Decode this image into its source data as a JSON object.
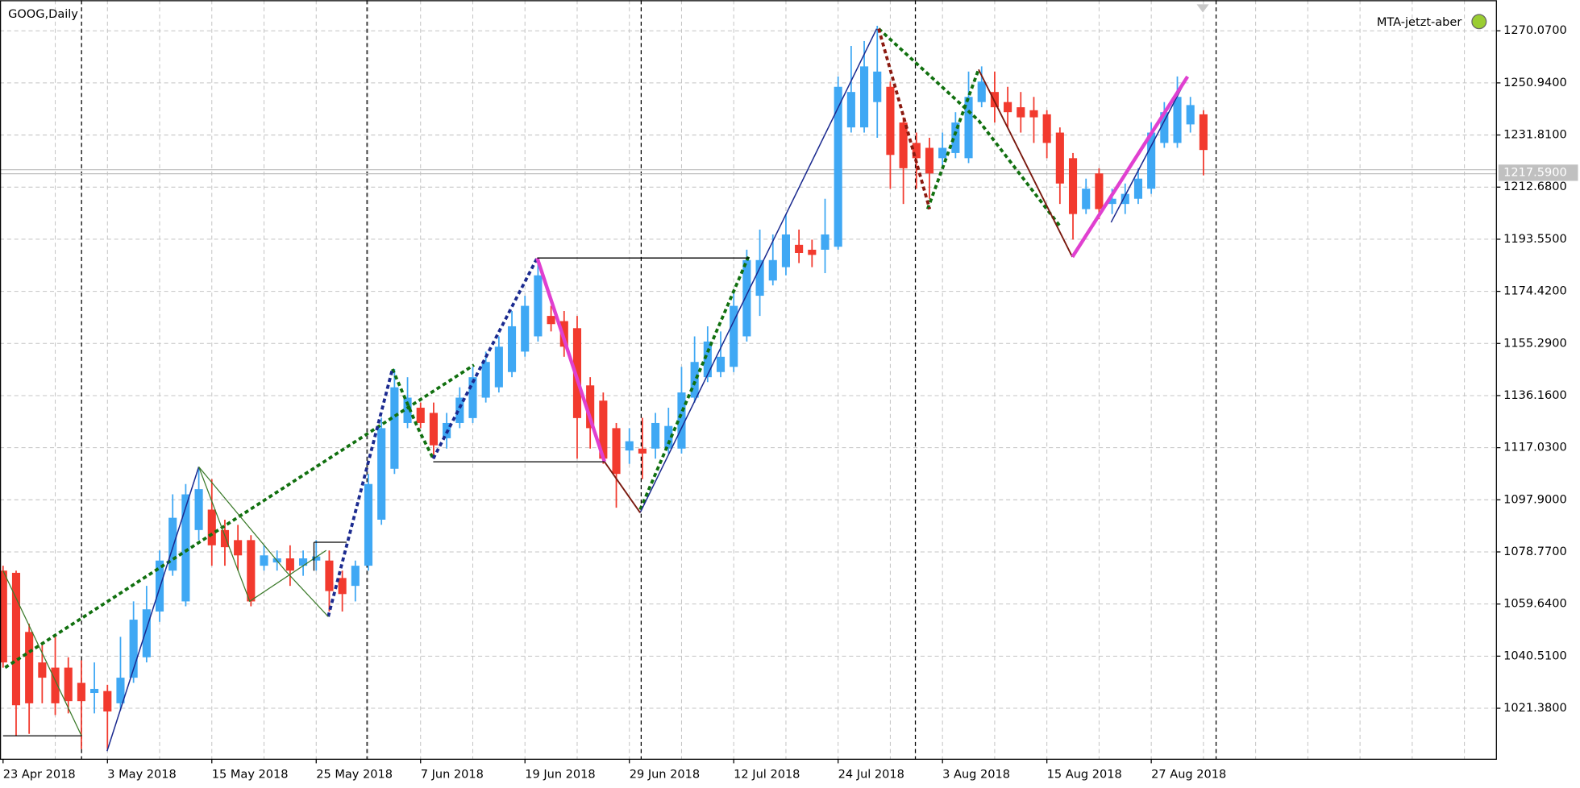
{
  "chart_data": {
    "type": "candlestick",
    "title": "GOOG,Daily",
    "indicator": "MTA-jetzt-aber",
    "up_color": "#3fa8f4",
    "down_color": "#f23a2e",
    "grid": true,
    "current_price": {
      "value": 1217.59,
      "label": "1217.5900"
    },
    "categories": [
      "23 Apr 2018",
      null,
      null,
      null,
      null,
      null,
      null,
      null,
      "3 May 2018",
      null,
      null,
      null,
      null,
      null,
      null,
      null,
      "15 May 2018",
      null,
      null,
      null,
      null,
      null,
      null,
      null,
      "25 May 2018",
      null,
      null,
      null,
      null,
      null,
      null,
      null,
      "7 Jun 2018",
      null,
      null,
      null,
      null,
      null,
      null,
      null,
      "19 Jun 2018",
      null,
      null,
      null,
      null,
      null,
      null,
      null,
      "29 Jun 2018",
      null,
      null,
      null,
      null,
      null,
      null,
      null,
      "12 Jul 2018",
      null,
      null,
      null,
      null,
      null,
      null,
      null,
      "24 Jul 2018",
      null,
      null,
      null,
      null,
      null,
      null,
      null,
      "3 Aug 2018",
      null,
      null,
      null,
      null,
      null,
      null,
      null,
      "15 Aug 2018",
      null,
      null,
      null,
      null,
      null,
      null,
      null,
      "27 Aug 2018",
      null,
      null,
      null,
      null
    ],
    "open": [
      1071.9,
      1071.1,
      1049.4,
      1038.2,
      1036.3,
      1036.3,
      1030.7,
      1027.0,
      1027.7,
      1023.2,
      1032.6,
      1040.1,
      1056.9,
      1071.9,
      1060.6,
      1086.8,
      1094.3,
      1086.8,
      1083.1,
      1083.1,
      1073.7,
      1074.9,
      1076.4,
      1073.7,
      1075.6,
      1075.6,
      1069.2,
      1066.3,
      1073.7,
      1090.6,
      1109.3,
      1126.1,
      1131.7,
      1129.8,
      1120.5,
      1126.1,
      1127.9,
      1135.4,
      1139.2,
      1144.8,
      1152.3,
      1157.9,
      1165.4,
      1163.5,
      1160.9,
      1139.9,
      1134.3,
      1124.2,
      1116.0,
      1116.7,
      1116.7,
      1116.7,
      1116.7,
      1135.4,
      1142.9,
      1144.8,
      1146.7,
      1157.9,
      1172.8,
      1178.4,
      1183.3,
      1191.5,
      1189.7,
      1189.7,
      1190.8,
      1234.6,
      1234.6,
      1243.9,
      1249.5,
      1236.4,
      1228.9,
      1227.1,
      1223.3,
      1225.2,
      1223.3,
      1243.9,
      1247.6,
      1243.9,
      1242.0,
      1240.9,
      1239.4,
      1232.7,
      1223.3,
      1204.6,
      1217.7,
      1206.5,
      1206.5,
      1208.4,
      1212.1,
      1228.9,
      1228.9,
      1235.7,
      1239.4
    ],
    "high": [
      1073.7,
      1071.9,
      1052.4,
      1045.7,
      1047.6,
      1040.1,
      1039.0,
      1038.2,
      1030.0,
      1047.6,
      1060.6,
      1066.3,
      1079.3,
      1099.9,
      1103.7,
      1110.0,
      1105.5,
      1090.6,
      1088.7,
      1084.9,
      1081.2,
      1079.3,
      1081.2,
      1079.3,
      1083.1,
      1079.3,
      1071.9,
      1075.6,
      1107.4,
      1128.0,
      1145.9,
      1142.9,
      1133.6,
      1133.6,
      1129.8,
      1139.2,
      1146.7,
      1152.3,
      1157.9,
      1167.2,
      1172.8,
      1185.9,
      1169.1,
      1167.2,
      1165.4,
      1142.9,
      1137.3,
      1126.1,
      1124.2,
      1128.0,
      1129.8,
      1131.7,
      1146.7,
      1157.9,
      1161.6,
      1159.7,
      1174.7,
      1189.7,
      1197.1,
      1195.3,
      1202.8,
      1197.1,
      1193.4,
      1208.4,
      1253.3,
      1264.5,
      1266.3,
      1271.9,
      1251.4,
      1238.3,
      1232.7,
      1230.8,
      1232.7,
      1240.2,
      1255.1,
      1257.0,
      1255.1,
      1249.5,
      1247.6,
      1245.8,
      1240.9,
      1234.6,
      1225.2,
      1215.8,
      1219.6,
      1212.1,
      1214.0,
      1219.6,
      1236.4,
      1243.9,
      1253.3,
      1245.8,
      1240.9
    ],
    "low": [
      1036.3,
      1011.3,
      1012.0,
      1023.2,
      1018.9,
      1019.5,
      1006.4,
      1019.5,
      1006.4,
      1020.6,
      1030.7,
      1038.2,
      1053.1,
      1070.0,
      1058.8,
      1083.1,
      1073.7,
      1073.7,
      1071.9,
      1058.8,
      1071.9,
      1071.9,
      1066.3,
      1070.0,
      1071.9,
      1056.9,
      1056.9,
      1060.6,
      1071.9,
      1088.7,
      1107.4,
      1124.2,
      1124.2,
      1113.0,
      1116.7,
      1124.2,
      1126.1,
      1133.6,
      1137.3,
      1142.9,
      1150.4,
      1156.0,
      1159.7,
      1150.4,
      1113.0,
      1116.7,
      1111.1,
      1095.0,
      1111.1,
      1105.5,
      1113.0,
      1114.9,
      1114.9,
      1133.6,
      1141.1,
      1142.9,
      1144.8,
      1156.0,
      1165.4,
      1176.6,
      1180.3,
      1184.8,
      1183.3,
      1181.1,
      1189.7,
      1232.7,
      1232.7,
      1230.8,
      1212.1,
      1206.5,
      1212.1,
      1208.4,
      1219.6,
      1223.3,
      1221.5,
      1242.0,
      1236.4,
      1234.6,
      1232.7,
      1228.9,
      1223.3,
      1206.5,
      1193.4,
      1202.8,
      1200.9,
      1202.8,
      1202.8,
      1206.5,
      1210.2,
      1227.1,
      1227.1,
      1232.7,
      1217.0
    ],
    "close": [
      1038.2,
      1022.5,
      1023.2,
      1032.6,
      1023.2,
      1024.0,
      1024.0,
      1028.5,
      1020.2,
      1032.6,
      1053.9,
      1057.7,
      1075.6,
      1091.3,
      1099.9,
      1101.8,
      1081.2,
      1080.5,
      1077.5,
      1060.6,
      1077.5,
      1076.4,
      1071.9,
      1076.4,
      1077.1,
      1064.4,
      1063.3,
      1073.7,
      1103.7,
      1124.2,
      1139.2,
      1135.4,
      1126.1,
      1117.9,
      1126.1,
      1135.4,
      1142.9,
      1148.5,
      1154.1,
      1161.6,
      1169.1,
      1180.3,
      1162.4,
      1154.1,
      1127.9,
      1124.2,
      1113.0,
      1107.4,
      1119.4,
      1114.9,
      1126.1,
      1125.0,
      1137.3,
      1148.5,
      1156.0,
      1150.4,
      1169.1,
      1185.9,
      1185.9,
      1185.9,
      1195.3,
      1188.5,
      1187.8,
      1195.3,
      1249.5,
      1247.6,
      1257.0,
      1255.1,
      1224.5,
      1219.6,
      1223.3,
      1217.7,
      1227.1,
      1236.4,
      1245.8,
      1251.4,
      1242.0,
      1240.2,
      1238.3,
      1238.3,
      1228.9,
      1214.0,
      1202.8,
      1212.1,
      1204.6,
      1208.4,
      1210.2,
      1215.8,
      1232.7,
      1240.2,
      1245.8,
      1242.8,
      1226.3
    ],
    "ylim": [
      1002.66,
      1281.29
    ],
    "yticks": [
      {
        "value": 1270.07,
        "label": "1270.0700"
      },
      {
        "value": 1250.94,
        "label": "1250.9400"
      },
      {
        "value": 1231.81,
        "label": "1231.8100"
      },
      {
        "value": 1212.68,
        "label": "1212.6800"
      },
      {
        "value": 1193.55,
        "label": "1193.5500"
      },
      {
        "value": 1174.42,
        "label": "1174.4200"
      },
      {
        "value": 1155.29,
        "label": "1155.2900"
      },
      {
        "value": 1136.16,
        "label": "1136.1600"
      },
      {
        "value": 1117.03,
        "label": "1117.0300"
      },
      {
        "value": 1097.9,
        "label": "1097.9000"
      },
      {
        "value": 1078.77,
        "label": "1078.7700"
      },
      {
        "value": 1059.64,
        "label": "1059.6400"
      },
      {
        "value": 1040.51,
        "label": "1040.5100"
      },
      {
        "value": 1021.38,
        "label": "1021.3800"
      }
    ]
  }
}
